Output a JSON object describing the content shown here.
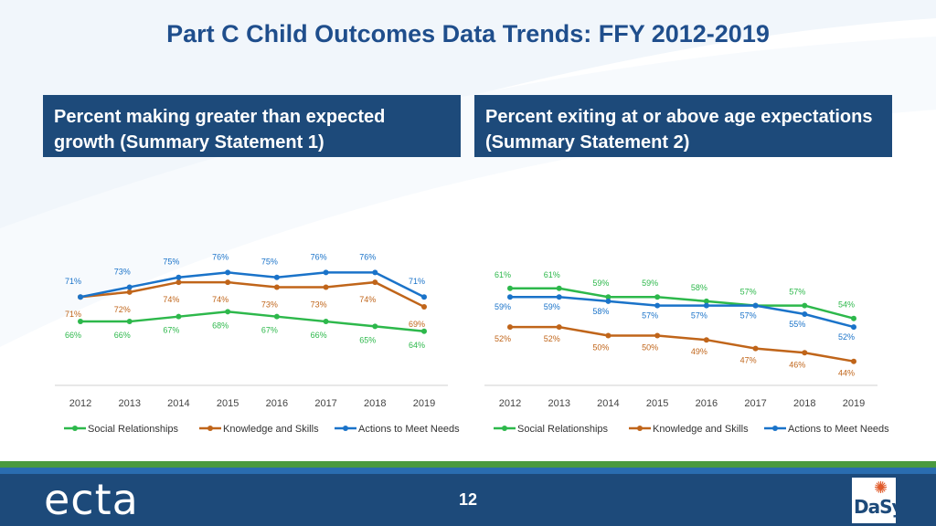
{
  "title": "Part C Child Outcomes Data Trends: FFY 2012-2019",
  "panels": {
    "left_heading": "Percent making greater than expected growth (Summary Statement 1)",
    "right_heading": "Percent exiting at or above age expectations (Summary Statement 2)"
  },
  "colors": {
    "social": "#2db84b",
    "knowledge": "#c0651a",
    "actions": "#1a73c9",
    "header": "#1d4a7a",
    "title": "#1f4e8c"
  },
  "footer": {
    "logo": "ecta",
    "page_number": "12",
    "dasy_logo": "DaSy"
  },
  "chart_data": [
    {
      "type": "line",
      "title": "Percent making greater than expected growth (Summary Statement 1)",
      "categories": [
        "2012",
        "2013",
        "2014",
        "2015",
        "2016",
        "2017",
        "2018",
        "2019"
      ],
      "series": [
        {
          "name": "Social Relationships",
          "values": [
            66,
            66,
            67,
            68,
            67,
            66,
            65,
            64
          ]
        },
        {
          "name": "Knowledge and Skills",
          "values": [
            71,
            72,
            74,
            74,
            73,
            73,
            74,
            69
          ]
        },
        {
          "name": "Actions to Meet Needs",
          "values": [
            71,
            73,
            75,
            76,
            75,
            76,
            76,
            71
          ]
        }
      ],
      "legend_position": "bottom",
      "ylim": [
        50,
        85
      ]
    },
    {
      "type": "line",
      "title": "Percent exiting at or above age expectations (Summary Statement 2)",
      "categories": [
        "2012",
        "2013",
        "2014",
        "2015",
        "2016",
        "2017",
        "2018",
        "2019"
      ],
      "series": [
        {
          "name": "Social Relationships",
          "values": [
            61,
            61,
            59,
            59,
            58,
            57,
            57,
            54
          ]
        },
        {
          "name": "Knowledge and Skills",
          "values": [
            52,
            52,
            50,
            50,
            49,
            47,
            46,
            44
          ]
        },
        {
          "name": "Actions to Meet Needs",
          "values": [
            59,
            59,
            58,
            57,
            57,
            57,
            55,
            52
          ]
        }
      ],
      "legend_position": "bottom",
      "ylim": [
        35,
        75
      ]
    }
  ]
}
